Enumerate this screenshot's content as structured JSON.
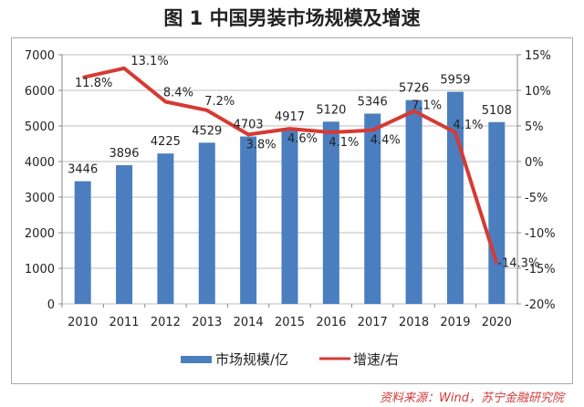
{
  "title": "图 1  中国男装市场规模及增速",
  "source": "资料来源：Wind，苏宁金融研究院",
  "chart_data": {
    "type": "bar+line",
    "categories": [
      "2010",
      "2011",
      "2012",
      "2013",
      "2014",
      "2015",
      "2016",
      "2017",
      "2018",
      "2019",
      "2020"
    ],
    "series": [
      {
        "name": "市场规模/亿",
        "type": "bar",
        "axis": "left",
        "color": "#4a7ebf",
        "values": [
          3446,
          3896,
          4225,
          4529,
          4703,
          4917,
          5120,
          5346,
          5726,
          5959,
          5108
        ]
      },
      {
        "name": "增速/右",
        "type": "line",
        "axis": "right",
        "color": "#d63a34",
        "values": [
          11.8,
          13.1,
          8.4,
          7.2,
          3.8,
          4.6,
          4.1,
          4.4,
          7.1,
          4.1,
          -14.3
        ],
        "labels": [
          "11.8%",
          "13.1%",
          "8.4%",
          "7.2%",
          "3.8%",
          "4.6%",
          "4.1%",
          "4.4%",
          "7.1%",
          "4.1%",
          "-14.3%"
        ]
      }
    ],
    "left_axis": {
      "min": 0,
      "max": 7000,
      "step": 1000,
      "ticks": [
        "0",
        "1000",
        "2000",
        "3000",
        "4000",
        "5000",
        "6000",
        "7000"
      ]
    },
    "right_axis": {
      "min": -20,
      "max": 15,
      "step": 5,
      "ticks": [
        "-20%",
        "-15%",
        "-10%",
        "-5%",
        "0%",
        "5%",
        "10%",
        "15%"
      ]
    },
    "grid": true,
    "legend": "bottom"
  }
}
